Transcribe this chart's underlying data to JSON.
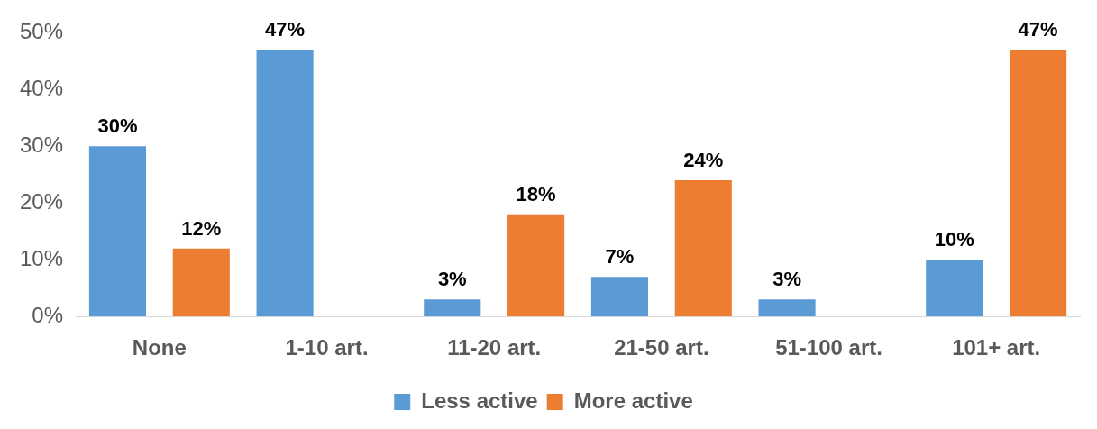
{
  "chart_data": {
    "type": "bar",
    "categories": [
      "None",
      "1-10 art.",
      "11-20 art.",
      "21-50 art.",
      "51-100 art.",
      "101+ art."
    ],
    "series": [
      {
        "name": "Less active",
        "color": "#5b9bd5",
        "values": [
          30,
          47,
          3,
          7,
          3,
          10
        ]
      },
      {
        "name": "More active",
        "color": "#ed7d31",
        "values": [
          12,
          null,
          18,
          24,
          null,
          47
        ]
      }
    ],
    "ylim": [
      0,
      50
    ],
    "yticks": [
      {
        "value": 0,
        "label": "0%"
      },
      {
        "value": 10,
        "label": "10%"
      },
      {
        "value": 20,
        "label": "20%"
      },
      {
        "value": 30,
        "label": "30%"
      },
      {
        "value": 40,
        "label": "40%"
      },
      {
        "value": 50,
        "label": "50%"
      }
    ],
    "value_labels": [
      [
        "30%",
        "47%",
        "3%",
        "7%",
        "3%",
        "10%"
      ],
      [
        "12%",
        null,
        "18%",
        "24%",
        null,
        "47%"
      ]
    ],
    "grid": false,
    "legend": "bottom"
  }
}
